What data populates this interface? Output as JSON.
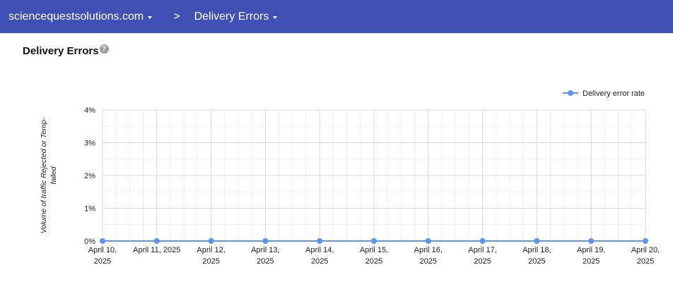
{
  "header": {
    "domain": "sciencequestsolutions.com",
    "separator": ">",
    "page": "Delivery Errors"
  },
  "section_title": "Delivery Errors",
  "help_icon": "?",
  "colors": {
    "header": "#3f51b5",
    "series": "#5c95f0"
  },
  "chart_data": {
    "type": "line",
    "title": "",
    "ylabel": "Volume of traffic Rejected or Temp-failed",
    "ylabel_lines": [
      "Volume of traffic Rejected or Temp-",
      "failed"
    ],
    "xlabel": "",
    "ylim": [
      0,
      4
    ],
    "yticks": [
      "0%",
      "1%",
      "2%",
      "3%",
      "4%"
    ],
    "grid": true,
    "legend": "top-right",
    "categories": [
      [
        "April 10,",
        "2025"
      ],
      [
        "April 11, 2025"
      ],
      [
        "April 12,",
        "2025"
      ],
      [
        "April 13,",
        "2025"
      ],
      [
        "April 14,",
        "2025"
      ],
      [
        "April 15,",
        "2025"
      ],
      [
        "April 16,",
        "2025"
      ],
      [
        "April 17,",
        "2025"
      ],
      [
        "April 18,",
        "2025"
      ],
      [
        "April 19,",
        "2025"
      ],
      [
        "April 20,",
        "2025"
      ]
    ],
    "series": [
      {
        "name": "Delivery error rate",
        "values": [
          0,
          0,
          0,
          0,
          0,
          0,
          0,
          0,
          0,
          0,
          0
        ]
      }
    ]
  }
}
